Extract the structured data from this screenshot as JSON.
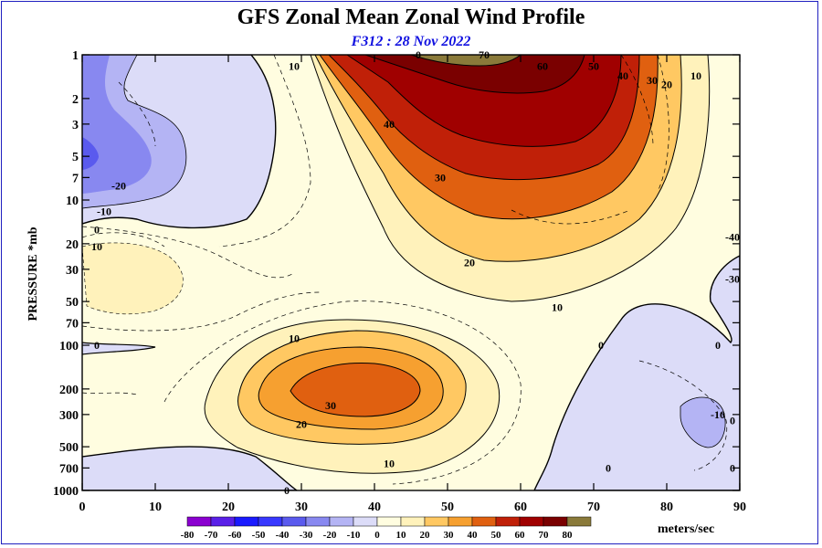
{
  "title": "GFS Zonal Mean Zonal Wind Profile",
  "subtitle": "F312 : 28 Nov 2022",
  "chart_data": {
    "type": "heatmap",
    "title": "GFS Zonal Mean Zonal Wind Profile",
    "subtitle": "F312 : 28 Nov 2022",
    "xlabel": "",
    "ylabel": "PRESSURE *mb",
    "xlim": [
      0,
      90
    ],
    "ylim": [
      1000,
      1
    ],
    "y_scale": "log",
    "x_ticks": [
      0,
      10,
      20,
      30,
      40,
      50,
      60,
      70,
      80,
      90
    ],
    "y_ticks": [
      1,
      2,
      3,
      5,
      7,
      10,
      20,
      30,
      50,
      70,
      100,
      200,
      300,
      500,
      700,
      1000
    ],
    "units": "meters/sec",
    "colorbar": {
      "levels": [
        -80,
        -70,
        -60,
        -50,
        -40,
        -30,
        -20,
        -10,
        0,
        10,
        20,
        30,
        40,
        50,
        60,
        70,
        80
      ],
      "colors": [
        "#8b00d0",
        "#5a20e8",
        "#1a1aff",
        "#3838ff",
        "#5a5aee",
        "#8888f0",
        "#b4b4f4",
        "#dcdcf8",
        "#fffde0",
        "#fff2bb",
        "#ffc862",
        "#f6a030",
        "#e06010",
        "#c02008",
        "#a00000",
        "#7a0000"
      ],
      "last_color": "#8a7a3a"
    },
    "contour_labels": [
      {
        "value": "0",
        "x": 46,
        "y": 1
      },
      {
        "value": "70",
        "x": 55,
        "y": 1
      },
      {
        "value": "60",
        "x": 63,
        "y": 1.2
      },
      {
        "value": "50",
        "x": 70,
        "y": 1.2
      },
      {
        "value": "40",
        "x": 74,
        "y": 1.4
      },
      {
        "value": "30",
        "x": 78,
        "y": 1.5
      },
      {
        "value": "20",
        "x": 80,
        "y": 1.6
      },
      {
        "value": "10",
        "x": 84,
        "y": 1.4
      },
      {
        "value": "10",
        "x": 29,
        "y": 1.2
      },
      {
        "value": "40",
        "x": 42,
        "y": 3
      },
      {
        "value": "30",
        "x": 49,
        "y": 7
      },
      {
        "value": "20",
        "x": 53,
        "y": 27
      },
      {
        "value": "10",
        "x": 65,
        "y": 55
      },
      {
        "value": "10",
        "x": 29,
        "y": 90
      },
      {
        "value": "30",
        "x": 34,
        "y": 260
      },
      {
        "value": "20",
        "x": 30,
        "y": 350
      },
      {
        "value": "10",
        "x": 42,
        "y": 650
      },
      {
        "value": "0",
        "x": 71,
        "y": 100
      },
      {
        "value": "0",
        "x": 28,
        "y": 1000
      },
      {
        "value": "-20",
        "x": 5,
        "y": 8
      },
      {
        "value": "-10",
        "x": 3,
        "y": 12
      },
      {
        "value": "0",
        "x": 2,
        "y": 16
      },
      {
        "value": "10",
        "x": 2,
        "y": 21
      },
      {
        "value": "0",
        "x": 2,
        "y": 100
      },
      {
        "value": "-10",
        "x": 87,
        "y": 300
      },
      {
        "value": "0",
        "x": 89,
        "y": 330
      },
      {
        "value": "0",
        "x": 87,
        "y": 100
      },
      {
        "value": "0",
        "x": 72,
        "y": 700
      },
      {
        "value": "0",
        "x": 89,
        "y": 700
      },
      {
        "value": "-40",
        "x": 89,
        "y": 18
      },
      {
        "value": "-30",
        "x": 89,
        "y": 35
      }
    ]
  }
}
